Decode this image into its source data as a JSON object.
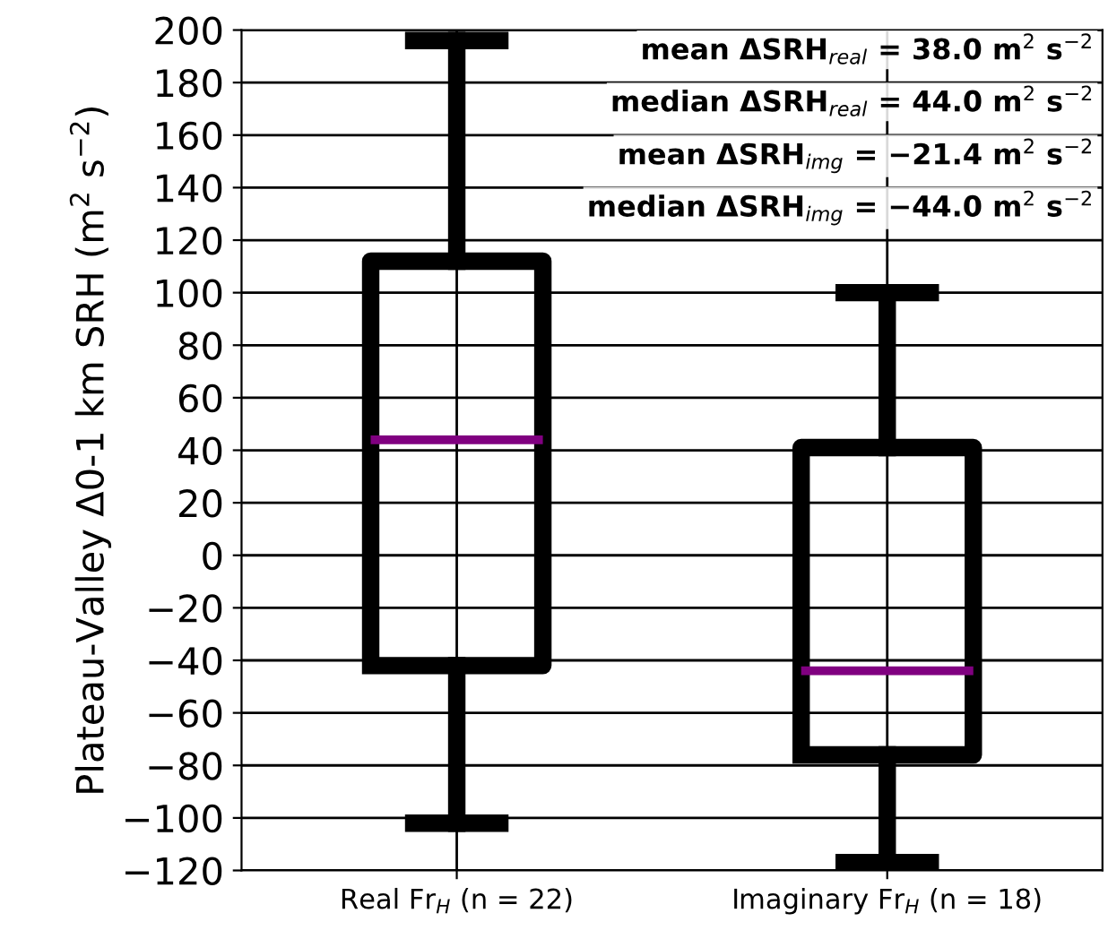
{
  "chart_data": {
    "type": "box",
    "ylabel": "Plateau-Valley Δ0-1 km SRH (m$^{2}$ s$^{−2}$)",
    "categories": [
      "Real Fr$_{H}$ (n = 22)",
      "Imaginary Fr$_{H}$ (n = 18)"
    ],
    "color": "#000000",
    "boxes": [
      {
        "low": -102,
        "q1": -42,
        "median": 44,
        "q3": 112,
        "high": 196
      },
      {
        "low": -117,
        "q1": -76,
        "median": -44,
        "q3": 41,
        "high": 100
      }
    ],
    "ylim": [
      -120,
      200
    ],
    "yticks": [
      -120,
      -100,
      -80,
      -60,
      -40,
      -20,
      0,
      20,
      40,
      60,
      80,
      100,
      120,
      140,
      160,
      180,
      200
    ],
    "grid": true,
    "annotations": [
      "mean ΔSRH$_{real}$ = 38.0 m$^{2}$ s$^{−2}$",
      "median ΔSRH$_{real}$ = 44.0 m$^{2}$ s$^{−2}$",
      "mean ΔSRH$_{img}$ = −21.4 m$^{2}$ s$^{−2}$",
      "median ΔSRH$_{img}$ = −44.0 m$^{2}$ s$^{−2}$"
    ]
  }
}
